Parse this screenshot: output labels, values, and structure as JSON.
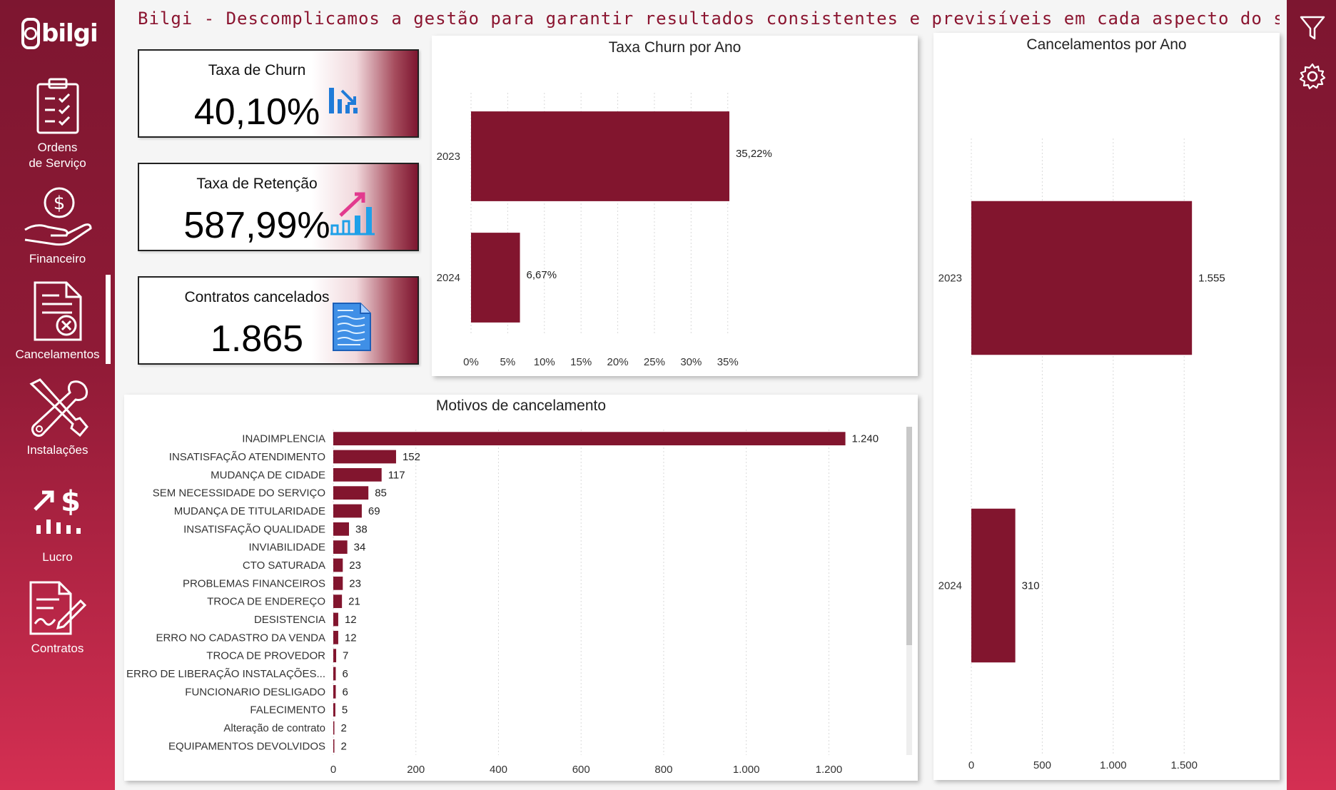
{
  "brand": {
    "logo_text": "bilgi"
  },
  "title": "Bilgi - Descomplicamos a gestão para garantir resultados consistentes e previsíveis em cada aspecto do seu neg",
  "nav": {
    "items": [
      {
        "label": "Ordens\nde Serviço",
        "icon": "clipboard-checklist-icon"
      },
      {
        "label": "Financeiro",
        "icon": "hand-money-icon"
      },
      {
        "label": "Cancelamentos",
        "icon": "document-cancel-icon",
        "active": true
      },
      {
        "label": "Instalações",
        "icon": "tools-icon"
      },
      {
        "label": "Lucro",
        "icon": "profit-chart-icon"
      },
      {
        "label": "Contratos",
        "icon": "contract-sign-icon"
      }
    ]
  },
  "rail": {
    "filter_icon": "filter-icon",
    "settings_icon": "gear-icon"
  },
  "kpis": [
    {
      "title": "Taxa de Churn",
      "value": "40,10%",
      "icon": "chart-down-icon"
    },
    {
      "title": "Taxa de Retenção",
      "value": "587,99%",
      "icon": "chart-up-icon"
    },
    {
      "title": "Contratos cancelados",
      "value": "1.865",
      "icon": "document-icon"
    }
  ],
  "colors": {
    "brand": "#7d1630",
    "bar": "#82152e"
  },
  "chart_data": [
    {
      "id": "churn",
      "type": "bar",
      "orientation": "horizontal",
      "title": "Taxa Churn por Ano",
      "categories": [
        "2023",
        "2024"
      ],
      "values": [
        35.22,
        6.67
      ],
      "value_labels": [
        "35,22%",
        "6,67%"
      ],
      "xlim": [
        0,
        36
      ],
      "xticks": [
        0,
        5,
        10,
        15,
        20,
        25,
        30,
        35
      ],
      "xtick_labels": [
        "0%",
        "5%",
        "10%",
        "15%",
        "20%",
        "25%",
        "30%",
        "35%"
      ],
      "grid": true
    },
    {
      "id": "cancel",
      "type": "bar",
      "orientation": "horizontal",
      "title": "Cancelamentos por Ano",
      "categories": [
        "2023",
        "2024"
      ],
      "values": [
        1555,
        310
      ],
      "value_labels": [
        "1.555",
        "310"
      ],
      "xlim": [
        0,
        1700
      ],
      "xticks": [
        0,
        500,
        1000,
        1500
      ],
      "xtick_labels": [
        "0",
        "500",
        "1.000",
        "1.500"
      ],
      "grid": true
    },
    {
      "id": "motivos",
      "type": "bar",
      "orientation": "horizontal",
      "title": "Motivos de cancelamento",
      "categories": [
        "INADIMPLENCIA",
        "INSATISFAÇÃO ATENDIMENTO",
        "MUDANÇA DE CIDADE",
        "SEM NECESSIDADE DO SERVIÇO",
        "MUDANÇA DE TITULARIDADE",
        "INSATISFAÇÃO QUALIDADE",
        "INVIABILIDADE",
        "CTO SATURADA",
        "PROBLEMAS FINANCEIROS",
        "TROCA DE ENDEREÇO",
        "DESISTENCIA",
        "ERRO NO CADASTRO DA VENDA",
        "TROCA DE PROVEDOR",
        "ERRO DE LIBERAÇÃO INSTALAÇÕES...",
        "FUNCIONARIO DESLIGADO",
        "FALECIMENTO",
        "Alteração de contrato",
        "EQUIPAMENTOS DEVOLVIDOS"
      ],
      "values": [
        1240,
        152,
        117,
        85,
        69,
        38,
        34,
        23,
        23,
        21,
        12,
        12,
        7,
        6,
        6,
        5,
        2,
        2
      ],
      "value_labels": [
        "1.240",
        "152",
        "117",
        "85",
        "69",
        "38",
        "34",
        "23",
        "23",
        "21",
        "12",
        "12",
        "7",
        "6",
        "6",
        "5",
        "2",
        "2"
      ],
      "xlim": [
        0,
        1360
      ],
      "xticks": [
        0,
        200,
        400,
        600,
        800,
        1000,
        1200
      ],
      "xtick_labels": [
        "0",
        "200",
        "400",
        "600",
        "800",
        "1.000",
        "1.200"
      ],
      "grid": true
    }
  ]
}
